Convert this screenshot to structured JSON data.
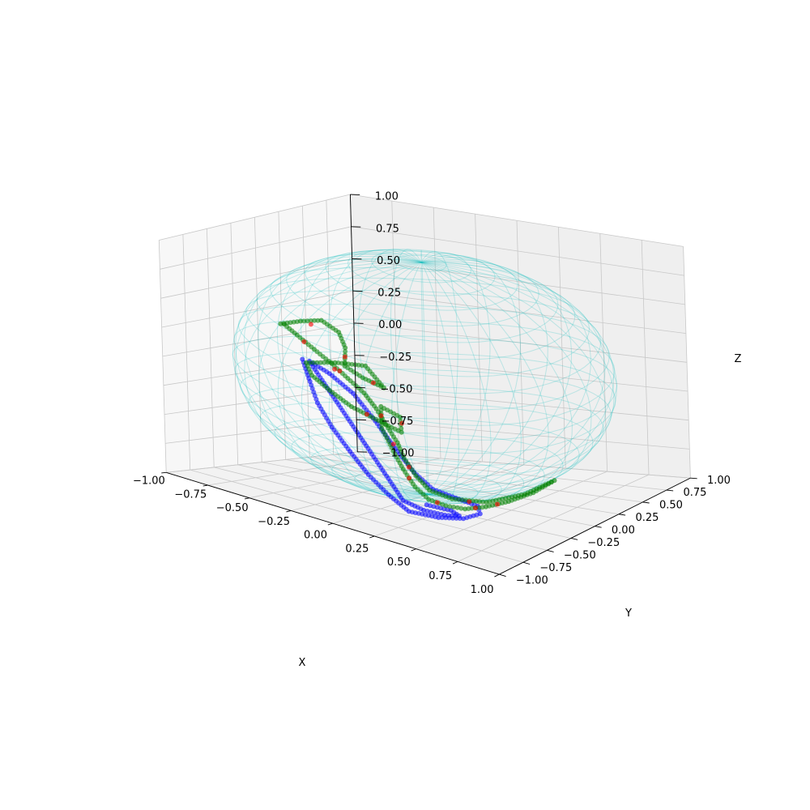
{
  "chart_data": {
    "type": "scatter",
    "projection": "3d",
    "xlabel": "X",
    "ylabel": "Y",
    "zlabel": "Z",
    "xlim": [
      -1.0,
      1.0
    ],
    "ylim": [
      -1.0,
      1.0
    ],
    "zlim": [
      -1.0,
      1.0
    ],
    "x_ticks": [
      "−1.00",
      "−0.75",
      "−0.50",
      "−0.25",
      "0.00",
      "0.25",
      "0.50",
      "0.75",
      "1.00"
    ],
    "y_ticks": [
      "−1.00",
      "−0.75",
      "−0.50",
      "−0.25",
      "0.00",
      "0.25",
      "0.50",
      "0.75",
      "1.00"
    ],
    "z_ticks": [
      "−1.00",
      "−0.75",
      "−0.50",
      "−0.25",
      "0.00",
      "0.25",
      "0.50",
      "0.75",
      "1.00"
    ],
    "tick_values": [
      -1.0,
      -0.75,
      -0.5,
      -0.25,
      0.0,
      0.25,
      0.5,
      0.75,
      1.0
    ],
    "grid": true,
    "sphere": {
      "radius": 1.0,
      "color": "#00bcbc",
      "style": "wireframe"
    },
    "series": [
      {
        "color": "#0000ff",
        "points": [
          [
            -0.55,
            -0.32,
            0.05
          ],
          [
            -0.45,
            -0.42,
            -0.08
          ],
          [
            -0.35,
            -0.52,
            -0.2
          ],
          [
            -0.22,
            -0.6,
            -0.34
          ],
          [
            -0.08,
            -0.66,
            -0.48
          ],
          [
            0.05,
            -0.7,
            -0.62
          ],
          [
            0.18,
            -0.72,
            -0.74
          ],
          [
            0.3,
            -0.72,
            -0.84
          ],
          [
            0.42,
            -0.62,
            -0.88
          ],
          [
            0.5,
            -0.5,
            -0.9
          ],
          [
            0.52,
            -0.36,
            -0.9
          ],
          [
            0.46,
            -0.28,
            -0.88
          ],
          [
            0.34,
            -0.3,
            -0.84
          ],
          [
            0.24,
            -0.36,
            -0.78
          ],
          [
            0.14,
            -0.38,
            -0.66
          ],
          [
            0.02,
            -0.36,
            -0.5
          ],
          [
            -0.12,
            -0.32,
            -0.32
          ],
          [
            -0.26,
            -0.3,
            -0.14
          ],
          [
            -0.4,
            -0.3,
            -0.02
          ],
          [
            -0.52,
            -0.3,
            0.04
          ],
          [
            0.22,
            -0.64,
            -0.8
          ],
          [
            0.32,
            -0.6,
            -0.86
          ],
          [
            0.4,
            -0.52,
            -0.9
          ],
          [
            0.44,
            -0.44,
            -0.92
          ],
          [
            0.38,
            -0.42,
            -0.9
          ],
          [
            0.28,
            -0.5,
            -0.86
          ]
        ]
      },
      {
        "color": "#008000",
        "points": [
          [
            -0.6,
            -0.45,
            0.36
          ],
          [
            -0.52,
            -0.38,
            0.4
          ],
          [
            -0.44,
            -0.3,
            0.42
          ],
          [
            -0.36,
            -0.26,
            0.34
          ],
          [
            -0.3,
            -0.3,
            0.24
          ],
          [
            -0.26,
            -0.38,
            0.12
          ],
          [
            -0.2,
            -0.3,
            0.02
          ],
          [
            -0.12,
            -0.22,
            -0.06
          ],
          [
            -0.24,
            -0.2,
            0.08
          ],
          [
            -0.4,
            -0.24,
            0.06
          ],
          [
            -0.54,
            -0.3,
            0.02
          ],
          [
            -0.46,
            -0.38,
            -0.04
          ],
          [
            -0.32,
            -0.44,
            -0.1
          ],
          [
            -0.18,
            -0.46,
            -0.18
          ],
          [
            -0.04,
            -0.42,
            -0.26
          ],
          [
            0.06,
            -0.36,
            -0.34
          ],
          [
            0.02,
            -0.3,
            -0.24
          ],
          [
            -0.06,
            -0.36,
            -0.16
          ],
          [
            0.0,
            -0.46,
            -0.3
          ],
          [
            0.1,
            -0.52,
            -0.44
          ],
          [
            0.18,
            -0.56,
            -0.56
          ],
          [
            0.26,
            -0.58,
            -0.68
          ],
          [
            0.34,
            -0.58,
            -0.76
          ],
          [
            0.42,
            -0.54,
            -0.8
          ],
          [
            0.5,
            -0.48,
            -0.82
          ],
          [
            0.58,
            -0.4,
            -0.8
          ],
          [
            0.66,
            -0.3,
            -0.76
          ],
          [
            0.74,
            -0.18,
            -0.7
          ],
          [
            0.8,
            -0.06,
            -0.62
          ],
          [
            0.7,
            -0.2,
            -0.72
          ],
          [
            0.56,
            -0.36,
            -0.78
          ],
          [
            0.4,
            -0.44,
            -0.78
          ],
          [
            0.3,
            -0.5,
            -0.72
          ],
          [
            0.22,
            -0.5,
            -0.62
          ],
          [
            0.14,
            -0.48,
            -0.5
          ],
          [
            0.08,
            -0.44,
            -0.4
          ],
          [
            -0.02,
            -0.38,
            -0.3
          ],
          [
            -0.1,
            -0.34,
            -0.2
          ],
          [
            -0.16,
            -0.36,
            -0.08
          ],
          [
            -0.22,
            -0.42,
            0.04
          ],
          [
            -0.28,
            -0.48,
            0.16
          ],
          [
            -0.36,
            -0.52,
            0.26
          ],
          [
            -0.46,
            -0.52,
            0.34
          ],
          [
            -0.56,
            -0.48,
            0.38
          ]
        ]
      },
      {
        "color": "#ff0000",
        "points": [
          [
            -0.48,
            -0.34,
            0.38
          ],
          [
            -0.28,
            -0.34,
            0.18
          ],
          [
            -0.16,
            -0.26,
            -0.02
          ],
          [
            -0.38,
            -0.28,
            0.02
          ],
          [
            -0.1,
            -0.44,
            -0.22
          ],
          [
            0.04,
            -0.32,
            -0.28
          ],
          [
            0.08,
            -0.48,
            -0.4
          ],
          [
            0.22,
            -0.57,
            -0.62
          ],
          [
            0.38,
            -0.56,
            -0.78
          ],
          [
            0.54,
            -0.44,
            -0.81
          ],
          [
            0.62,
            -0.35,
            -0.78
          ],
          [
            0.48,
            -0.4,
            -0.79
          ],
          [
            0.18,
            -0.5,
            -0.56
          ],
          [
            -0.06,
            -0.36,
            -0.24
          ],
          [
            -0.25,
            -0.45,
            0.1
          ],
          [
            -0.42,
            -0.52,
            0.3
          ]
        ]
      }
    ]
  }
}
